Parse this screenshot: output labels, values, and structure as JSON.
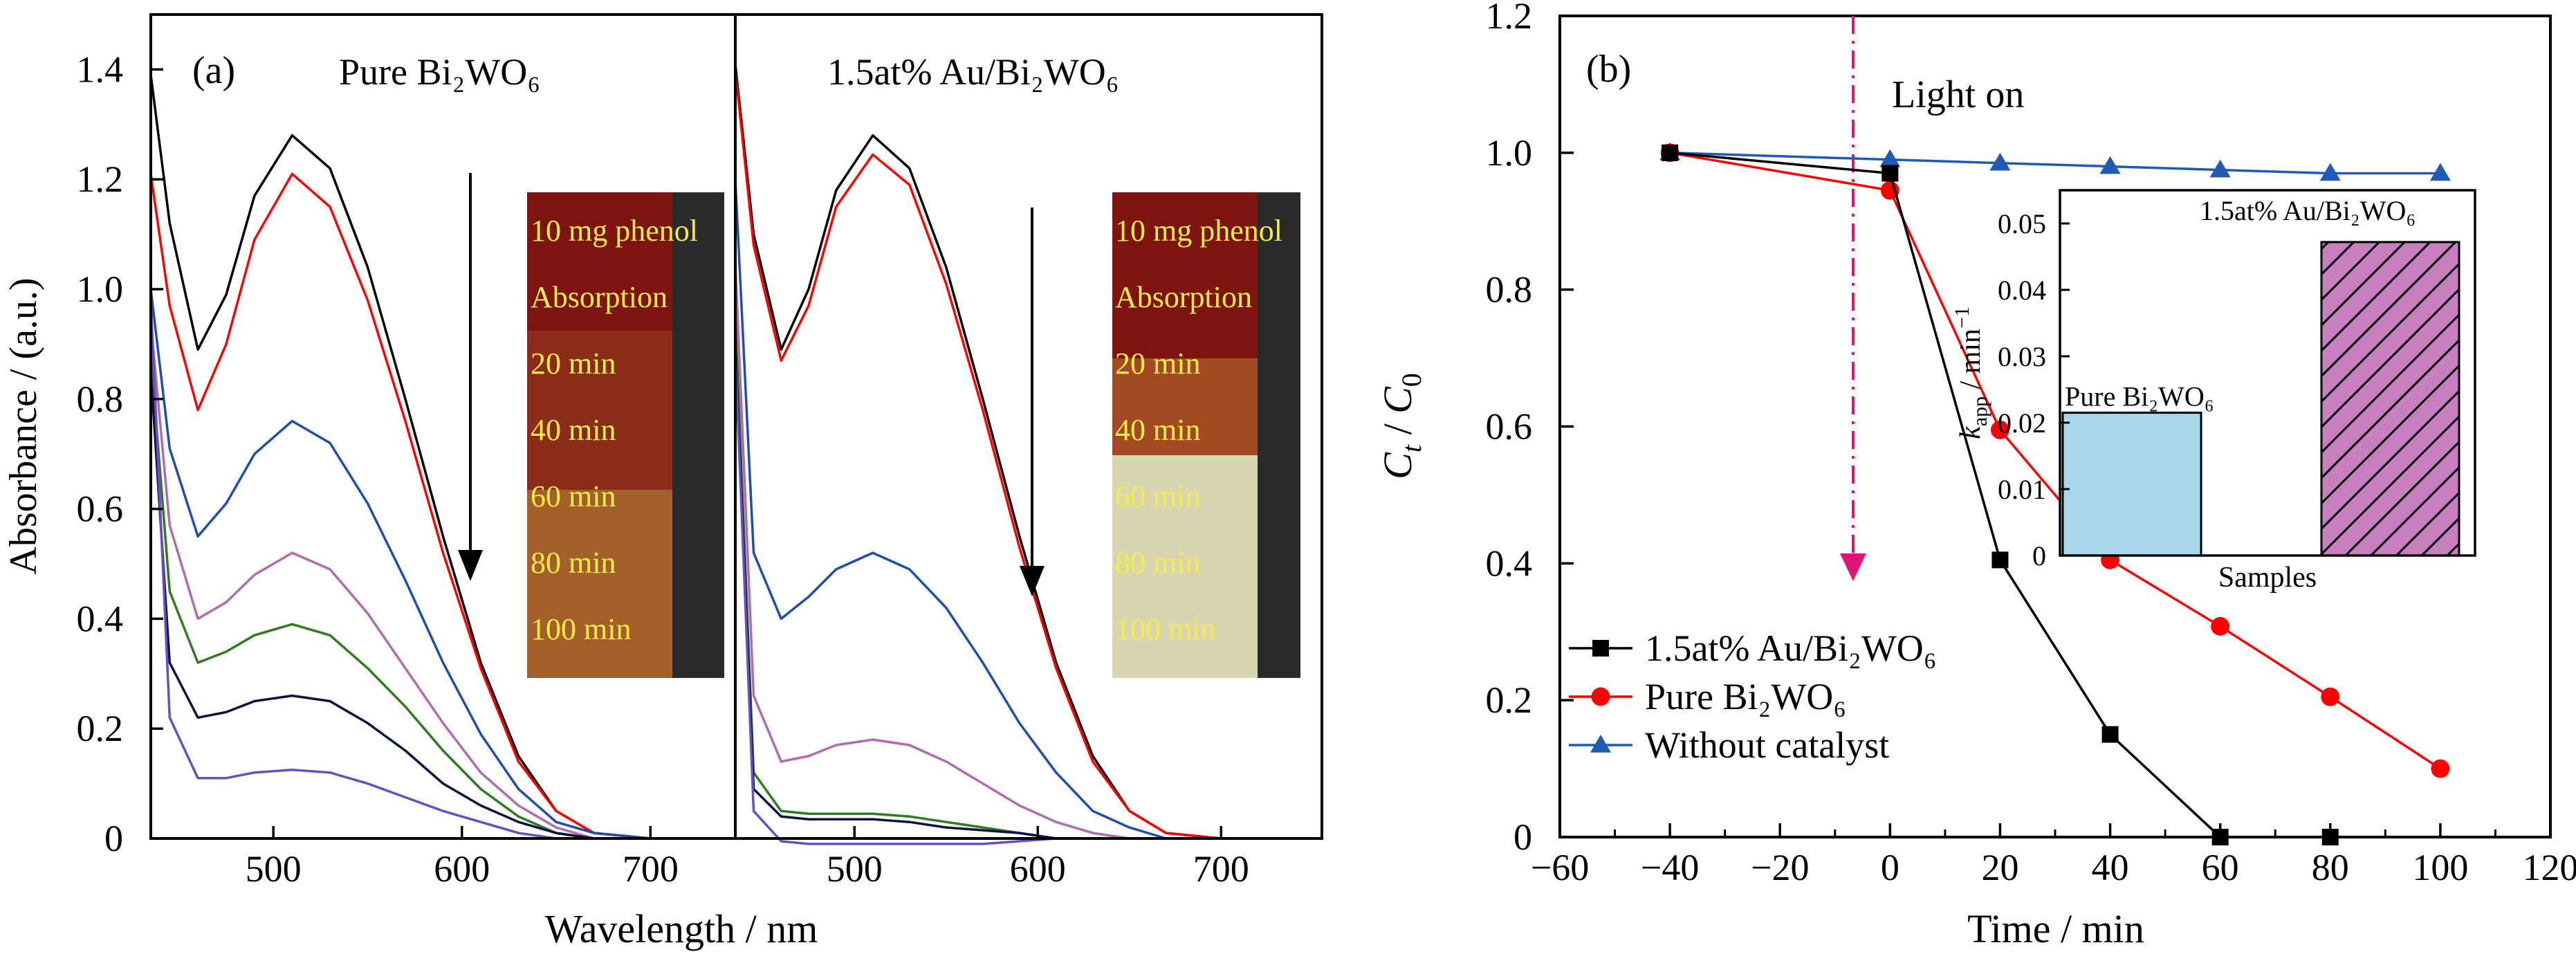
{
  "chart_data": [
    {
      "id": "a",
      "type": "line",
      "panel_label": "(a)",
      "ylabel": "Absorbance / (a.u.)",
      "xlabel": "Wavelength / nm",
      "xticks": [
        500,
        600,
        700
      ],
      "yticks": [
        "0",
        "0.2",
        "0.4",
        "0.6",
        "0.8",
        "1.0",
        "1.2",
        "1.4"
      ],
      "ylim": [
        0,
        1.5
      ],
      "subpanels": [
        {
          "title": "Pure Bi₂WO₆",
          "xlim": [
            435,
            745
          ],
          "photo_labels": [
            "10 mg phenol",
            "Absorption",
            "20 min",
            "40 min",
            "60 min",
            "80 min",
            "100 min"
          ],
          "series": [
            {
              "color": "#000000",
              "x": [
                435,
                445,
                460,
                475,
                490,
                510,
                530,
                550,
                570,
                590,
                610,
                630,
                650,
                670,
                700,
                745
              ],
              "y": [
                1.39,
                1.12,
                0.89,
                0.99,
                1.17,
                1.28,
                1.22,
                1.04,
                0.8,
                0.55,
                0.32,
                0.15,
                0.05,
                0.01,
                0.0,
                0.0
              ]
            },
            {
              "color": "#ff0000",
              "x": [
                435,
                445,
                460,
                475,
                490,
                510,
                530,
                550,
                570,
                590,
                610,
                630,
                650,
                670,
                700,
                745
              ],
              "y": [
                1.21,
                0.97,
                0.78,
                0.9,
                1.09,
                1.21,
                1.15,
                0.98,
                0.76,
                0.52,
                0.31,
                0.14,
                0.05,
                0.01,
                0.0,
                0.0
              ]
            },
            {
              "color": "#1f4fa8",
              "x": [
                435,
                445,
                460,
                475,
                490,
                510,
                530,
                550,
                570,
                590,
                610,
                630,
                650,
                670,
                700,
                745
              ],
              "y": [
                1.0,
                0.71,
                0.55,
                0.61,
                0.7,
                0.76,
                0.72,
                0.61,
                0.47,
                0.32,
                0.19,
                0.09,
                0.03,
                0.01,
                0.0,
                0.0
              ]
            },
            {
              "color": "#b36bb0",
              "x": [
                435,
                445,
                460,
                475,
                490,
                510,
                530,
                550,
                570,
                590,
                610,
                630,
                650,
                670,
                700,
                745
              ],
              "y": [
                0.94,
                0.57,
                0.4,
                0.43,
                0.48,
                0.52,
                0.49,
                0.41,
                0.31,
                0.21,
                0.12,
                0.06,
                0.02,
                0.0,
                0.0,
                0.0
              ]
            },
            {
              "color": "#2e7d1e",
              "x": [
                435,
                445,
                460,
                475,
                490,
                510,
                530,
                550,
                570,
                590,
                610,
                630,
                650,
                670,
                700,
                745
              ],
              "y": [
                0.88,
                0.45,
                0.32,
                0.34,
                0.37,
                0.39,
                0.37,
                0.31,
                0.24,
                0.16,
                0.09,
                0.04,
                0.01,
                0.0,
                0.0,
                0.0
              ]
            },
            {
              "color": "#0a1640",
              "x": [
                435,
                445,
                460,
                475,
                490,
                510,
                530,
                550,
                570,
                590,
                610,
                630,
                650,
                670,
                700,
                745
              ],
              "y": [
                0.85,
                0.32,
                0.22,
                0.23,
                0.25,
                0.26,
                0.25,
                0.21,
                0.16,
                0.1,
                0.06,
                0.03,
                0.01,
                0.0,
                0.0,
                0.0
              ]
            },
            {
              "color": "#6a4fc2",
              "x": [
                435,
                445,
                460,
                475,
                490,
                510,
                530,
                550,
                570,
                590,
                610,
                630,
                650,
                670,
                700,
                745
              ],
              "y": [
                0.98,
                0.22,
                0.11,
                0.11,
                0.12,
                0.125,
                0.12,
                0.1,
                0.075,
                0.05,
                0.03,
                0.01,
                0.0,
                0.0,
                0.0,
                0.0
              ]
            }
          ]
        },
        {
          "title": "1.5at% Au/Bi₂WO₆",
          "xlim": [
            435,
            755
          ],
          "photo_labels": [
            "10 mg phenol",
            "Absorption",
            "20 min",
            "40 min",
            "60 min",
            "80 min",
            "100 min"
          ],
          "series": [
            {
              "color": "#000000",
              "x": [
                435,
                445,
                460,
                475,
                490,
                510,
                530,
                550,
                570,
                590,
                610,
                630,
                650,
                670,
                700,
                755
              ],
              "y": [
                1.41,
                1.1,
                0.89,
                1.0,
                1.18,
                1.28,
                1.22,
                1.04,
                0.8,
                0.55,
                0.32,
                0.15,
                0.05,
                0.01,
                0.0,
                0.0
              ]
            },
            {
              "color": "#ff0000",
              "x": [
                435,
                445,
                460,
                475,
                490,
                510,
                530,
                550,
                570,
                590,
                610,
                630,
                650,
                670,
                700,
                755
              ],
              "y": [
                1.4,
                1.08,
                0.87,
                0.97,
                1.15,
                1.245,
                1.19,
                1.01,
                0.78,
                0.53,
                0.31,
                0.14,
                0.05,
                0.01,
                0.0,
                0.0
              ]
            },
            {
              "color": "#1f4fa8",
              "x": [
                435,
                445,
                460,
                475,
                490,
                510,
                530,
                550,
                570,
                590,
                610,
                630,
                650,
                670,
                700,
                755
              ],
              "y": [
                1.2,
                0.52,
                0.4,
                0.44,
                0.49,
                0.52,
                0.49,
                0.42,
                0.32,
                0.21,
                0.12,
                0.05,
                0.02,
                0.0,
                0.0,
                0.0
              ]
            },
            {
              "color": "#b36bb0",
              "x": [
                435,
                445,
                460,
                475,
                490,
                510,
                530,
                550,
                570,
                590,
                610,
                630,
                650,
                670,
                700,
                755
              ],
              "y": [
                1.05,
                0.26,
                0.14,
                0.15,
                0.17,
                0.18,
                0.17,
                0.14,
                0.1,
                0.06,
                0.03,
                0.01,
                0.0,
                0.0,
                0.0,
                0.0
              ]
            },
            {
              "color": "#2e7d1e",
              "x": [
                435,
                445,
                460,
                475,
                490,
                510,
                530,
                550,
                570,
                590,
                610,
                630,
                650,
                670,
                700,
                755
              ],
              "y": [
                0.95,
                0.12,
                0.05,
                0.045,
                0.045,
                0.045,
                0.04,
                0.03,
                0.02,
                0.01,
                0.0,
                0.0,
                0.0,
                0.0,
                0.0,
                0.0
              ]
            },
            {
              "color": "#0a1640",
              "x": [
                435,
                445,
                460,
                475,
                490,
                510,
                530,
                550,
                570,
                590,
                610,
                630,
                650,
                670,
                700,
                755
              ],
              "y": [
                0.9,
                0.09,
                0.04,
                0.035,
                0.035,
                0.035,
                0.03,
                0.02,
                0.015,
                0.01,
                0.0,
                0.0,
                0.0,
                0.0,
                0.0,
                0.0
              ]
            },
            {
              "color": "#6a4fc2",
              "x": [
                435,
                445,
                460,
                475,
                490,
                510,
                530,
                550,
                570,
                590,
                610,
                630,
                650,
                670,
                700,
                755
              ],
              "y": [
                0.88,
                0.05,
                -0.005,
                -0.01,
                -0.01,
                -0.01,
                -0.01,
                -0.01,
                -0.01,
                -0.005,
                0.0,
                0.0,
                0.0,
                0.0,
                0.0,
                0.0
              ]
            }
          ]
        }
      ],
      "arrow_direction": "down"
    },
    {
      "id": "b",
      "type": "line",
      "panel_label": "(b)",
      "ylabel_main": "C",
      "ylabel_sub1": "t",
      "ylabel_mid": " / ",
      "ylabel_sub2": "0",
      "xlabel": "Time / min",
      "xlim": [
        -60,
        120
      ],
      "ylim": [
        0,
        1.2
      ],
      "xticks": [
        "−60",
        "−40",
        "−20",
        "0",
        "20",
        "40",
        "60",
        "80",
        "100",
        "120"
      ],
      "yticks": [
        "0",
        "0.2",
        "0.4",
        "0.6",
        "0.8",
        "1.0",
        "1.2"
      ],
      "annotation": "Light on",
      "annotation_color": "#e0157a",
      "legend_position": "lower-left",
      "series": [
        {
          "name": "1.5at% Au/Bi₂WO₆",
          "marker": "square",
          "color": "#000000",
          "fill": "#000000",
          "x": [
            -40,
            0,
            20,
            40,
            60,
            80
          ],
          "y": [
            1.0,
            0.97,
            0.405,
            0.15,
            0.0,
            0.0
          ]
        },
        {
          "name": "Pure Bi₂WO₆",
          "marker": "circle",
          "color": "#ff0000",
          "fill": "#ff0000",
          "x": [
            -40,
            0,
            20,
            40,
            60,
            80,
            100
          ],
          "y": [
            1.0,
            0.945,
            0.595,
            0.405,
            0.308,
            0.205,
            0.1
          ]
        },
        {
          "name": "Without catalyst",
          "marker": "triangle",
          "color": "#1f5bb5",
          "fill": "#1f5bb5",
          "x": [
            -40,
            0,
            20,
            40,
            60,
            80,
            100
          ],
          "y": [
            1.0,
            0.99,
            0.985,
            0.98,
            0.975,
            0.97,
            0.97
          ]
        }
      ],
      "inset": {
        "type": "bar",
        "xlabel": "Samples",
        "ylabel_main": "k",
        "ylabel_sub": "app",
        "ylabel_rest": " / min",
        "ylabel_sup": "−1",
        "ylim": [
          0,
          0.055
        ],
        "yticks": [
          "0",
          "0.01",
          "0.02",
          "0.03",
          "0.04",
          "0.05"
        ],
        "categories": [
          "Pure Bi₂WO₆",
          "1.5at% Au/Bi₂WO₆"
        ],
        "values": [
          0.0215,
          0.0472
        ],
        "colors": [
          "#a9d9ea",
          "#c77fc0"
        ]
      }
    }
  ]
}
